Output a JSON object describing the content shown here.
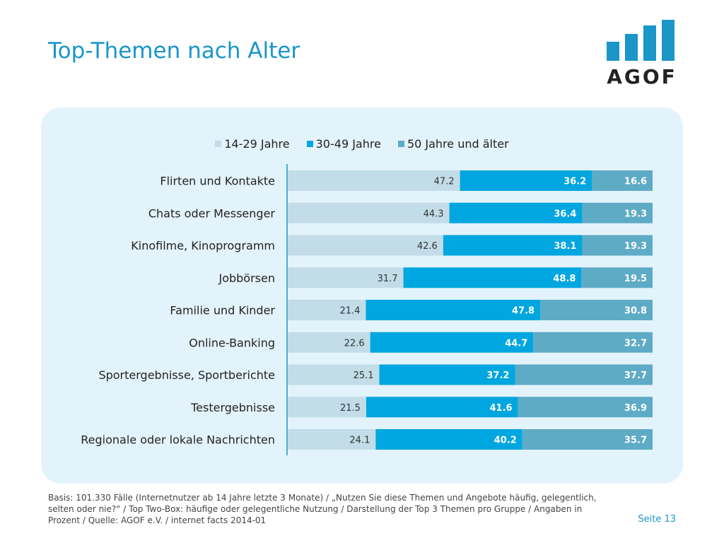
{
  "page": {
    "title": "Top-Themen nach Alter",
    "footnote": "Basis: 101.330 Fälle (Internetnutzer ab 14 Jahre letzte 3 Monate) / „Nutzen Sie diese Themen und Angebote häufig, gelegentlich, selten oder nie?“ / Top Two-Box: häufige oder gelegentliche Nutzung / Darstellung der Top 3 Themen pro Gruppe / Angaben in Prozent / Quelle: AGOF e.V. / internet facts 2014-01",
    "page_number": "Seite 13"
  },
  "logo": {
    "text": "AGOF",
    "color": "#1a96c9"
  },
  "chart_data": {
    "type": "bar",
    "orientation": "horizontal",
    "stacked": true,
    "categories": [
      "Flirten und Kontakte",
      "Chats oder Messenger",
      "Kinofilme, Kinoprogramm",
      "Jobbörsen",
      "Familie und Kinder",
      "Online-Banking",
      "Sportergebnisse, Sportberichte",
      "Testergebnisse",
      "Regionale oder lokale Nachrichten"
    ],
    "series": [
      {
        "name": "14-29 Jahre",
        "color": "#c2dde8",
        "values": [
          47.2,
          44.3,
          42.6,
          31.7,
          21.4,
          22.6,
          25.1,
          21.5,
          24.1
        ]
      },
      {
        "name": "30-49 Jahre",
        "color": "#00a6df",
        "values": [
          36.2,
          36.4,
          38.1,
          48.8,
          47.8,
          44.7,
          37.2,
          41.6,
          40.2
        ]
      },
      {
        "name": "50 Jahre und älter",
        "color": "#5eabc6",
        "values": [
          16.6,
          19.3,
          19.3,
          19.5,
          30.8,
          32.7,
          37.7,
          36.9,
          35.7
        ]
      }
    ],
    "xlim": [
      0,
      100
    ],
    "legend_position": "top",
    "grid": false
  }
}
